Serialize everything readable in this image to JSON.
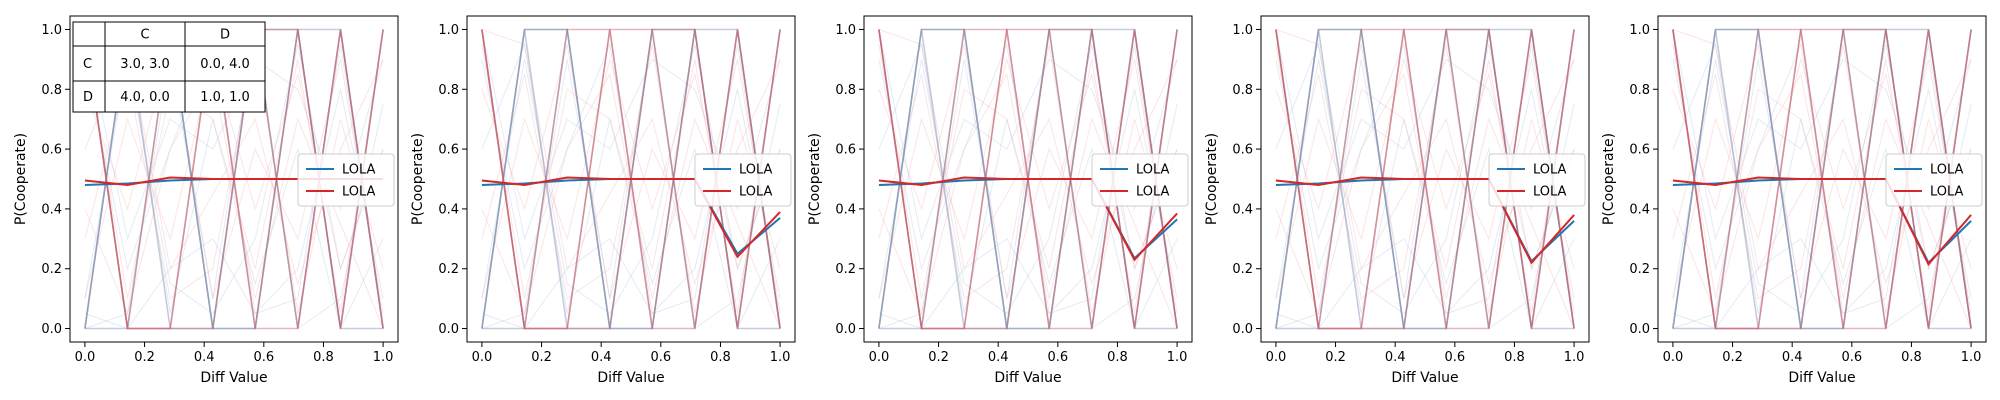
{
  "chart_data": [
    {
      "type": "line",
      "xlabel": "Diff Value",
      "ylabel": "P(Cooperate)",
      "xlim": [
        -0.05,
        1.05
      ],
      "ylim": [
        -0.045,
        1.045
      ],
      "xticks": [
        "0.0",
        "0.2",
        "0.4",
        "0.6",
        "0.8",
        "1.0"
      ],
      "yticks": [
        "0.0",
        "0.2",
        "0.4",
        "0.6",
        "0.8",
        "1.0"
      ],
      "grid": false,
      "legend": {
        "placement": "center-right",
        "entries": [
          "LOLA",
          "LOLA"
        ]
      },
      "x": [
        0,
        0.143,
        0.286,
        0.429,
        0.571,
        0.714,
        0.857,
        1.0
      ],
      "series": [
        {
          "name": "LOLA",
          "color": "#1f77b4",
          "values": [
            0.48,
            0.485,
            0.495,
            0.5,
            0.5,
            0.5,
            0.5,
            0.5
          ]
        },
        {
          "name": "LOLA",
          "color": "#d62728",
          "values": [
            0.495,
            0.48,
            0.505,
            0.5,
            0.5,
            0.5,
            0.5,
            0.5
          ]
        }
      ],
      "payoff_table": {
        "header": [
          "",
          "C",
          "D"
        ],
        "rows": [
          [
            "C",
            "3.0, 3.0",
            "0.0, 4.0"
          ],
          [
            "D",
            "4.0, 0.0",
            "1.0, 1.0"
          ]
        ]
      }
    },
    {
      "type": "line",
      "xlabel": "Diff Value",
      "ylabel": "P(Cooperate)",
      "xlim": [
        -0.05,
        1.05
      ],
      "ylim": [
        -0.045,
        1.045
      ],
      "xticks": [
        "0.0",
        "0.2",
        "0.4",
        "0.6",
        "0.8",
        "1.0"
      ],
      "yticks": [
        "0.0",
        "0.2",
        "0.4",
        "0.6",
        "0.8",
        "1.0"
      ],
      "grid": false,
      "legend": {
        "placement": "center-right",
        "entries": [
          "LOLA",
          "LOLA"
        ]
      },
      "x": [
        0,
        0.143,
        0.286,
        0.429,
        0.571,
        0.714,
        0.857,
        1.0
      ],
      "series": [
        {
          "name": "LOLA",
          "color": "#1f77b4",
          "values": [
            0.48,
            0.485,
            0.495,
            0.5,
            0.5,
            0.5,
            0.25,
            0.37
          ]
        },
        {
          "name": "LOLA",
          "color": "#d62728",
          "values": [
            0.495,
            0.48,
            0.505,
            0.5,
            0.5,
            0.5,
            0.24,
            0.39
          ]
        }
      ]
    },
    {
      "type": "line",
      "xlabel": "Diff Value",
      "ylabel": "P(Cooperate)",
      "xlim": [
        -0.05,
        1.05
      ],
      "ylim": [
        -0.045,
        1.045
      ],
      "xticks": [
        "0.0",
        "0.2",
        "0.4",
        "0.6",
        "0.8",
        "1.0"
      ],
      "yticks": [
        "0.0",
        "0.2",
        "0.4",
        "0.6",
        "0.8",
        "1.0"
      ],
      "grid": false,
      "legend": {
        "placement": "center-right",
        "entries": [
          "LOLA",
          "LOLA"
        ]
      },
      "x": [
        0,
        0.143,
        0.286,
        0.429,
        0.571,
        0.714,
        0.857,
        1.0
      ],
      "series": [
        {
          "name": "LOLA",
          "color": "#1f77b4",
          "values": [
            0.48,
            0.485,
            0.495,
            0.5,
            0.5,
            0.5,
            0.235,
            0.365
          ]
        },
        {
          "name": "LOLA",
          "color": "#d62728",
          "values": [
            0.495,
            0.48,
            0.505,
            0.5,
            0.5,
            0.5,
            0.23,
            0.385
          ]
        }
      ]
    },
    {
      "type": "line",
      "xlabel": "Diff Value",
      "ylabel": "P(Cooperate)",
      "xlim": [
        -0.05,
        1.05
      ],
      "ylim": [
        -0.045,
        1.045
      ],
      "xticks": [
        "0.0",
        "0.2",
        "0.4",
        "0.6",
        "0.8",
        "1.0"
      ],
      "yticks": [
        "0.0",
        "0.2",
        "0.4",
        "0.6",
        "0.8",
        "1.0"
      ],
      "grid": false,
      "legend": {
        "placement": "center-right",
        "entries": [
          "LOLA",
          "LOLA"
        ]
      },
      "x": [
        0,
        0.143,
        0.286,
        0.429,
        0.571,
        0.714,
        0.857,
        1.0
      ],
      "series": [
        {
          "name": "LOLA",
          "color": "#1f77b4",
          "values": [
            0.48,
            0.485,
            0.495,
            0.5,
            0.5,
            0.5,
            0.225,
            0.36
          ]
        },
        {
          "name": "LOLA",
          "color": "#d62728",
          "values": [
            0.495,
            0.48,
            0.505,
            0.5,
            0.5,
            0.5,
            0.22,
            0.38
          ]
        }
      ]
    },
    {
      "type": "line",
      "xlabel": "Diff Value",
      "ylabel": "P(Cooperate)",
      "xlim": [
        -0.05,
        1.05
      ],
      "ylim": [
        -0.045,
        1.045
      ],
      "xticks": [
        "0.0",
        "0.2",
        "0.4",
        "0.6",
        "0.8",
        "1.0"
      ],
      "yticks": [
        "0.0",
        "0.2",
        "0.4",
        "0.6",
        "0.8",
        "1.0"
      ],
      "grid": false,
      "legend": {
        "placement": "center-right",
        "entries": [
          "LOLA",
          "LOLA"
        ]
      },
      "x": [
        0,
        0.143,
        0.286,
        0.429,
        0.571,
        0.714,
        0.857,
        1.0
      ],
      "series": [
        {
          "name": "LOLA",
          "color": "#1f77b4",
          "values": [
            0.48,
            0.485,
            0.495,
            0.5,
            0.5,
            0.5,
            0.22,
            0.36
          ]
        },
        {
          "name": "LOLA",
          "color": "#d62728",
          "values": [
            0.495,
            0.48,
            0.505,
            0.5,
            0.5,
            0.5,
            0.215,
            0.38
          ]
        }
      ]
    }
  ],
  "background_traces": {
    "x": [
      0,
      0.143,
      0.286,
      0.429,
      0.571,
      0.714,
      0.857,
      1.0
    ],
    "strong_blue": [
      [
        0,
        1,
        1,
        0,
        0,
        1,
        0,
        0
      ],
      [
        0,
        1,
        0,
        0,
        1,
        0,
        1,
        0
      ],
      [
        0,
        1,
        1,
        0,
        1,
        1,
        0,
        1
      ],
      [
        0,
        0,
        1,
        0,
        0,
        1,
        1,
        0
      ]
    ],
    "strong_red": [
      [
        1,
        0,
        0,
        1,
        1,
        0,
        1,
        0
      ],
      [
        1,
        0,
        1,
        1,
        0,
        1,
        0,
        1
      ],
      [
        1,
        0,
        0,
        1,
        0,
        0,
        1,
        0
      ],
      [
        1,
        0,
        0,
        0,
        1,
        1,
        0,
        1
      ]
    ],
    "faint_blue": [
      [
        0.05,
        0.0,
        0.2,
        0.3,
        0.05,
        0.1,
        0.95,
        0.0
      ],
      [
        1.0,
        0.3,
        0.7,
        0.6,
        0.9,
        0.8,
        0.4,
        0.9
      ],
      [
        0.1,
        0.9,
        0.15,
        0.05,
        0.3,
        0.95,
        0.2,
        0.6
      ],
      [
        0.9,
        0.2,
        0.6,
        0.95,
        0.05,
        0.2,
        0.8,
        0.1
      ],
      [
        0.0,
        0.05,
        0.9,
        0.1,
        1.0,
        0.0,
        0.1,
        0.75
      ],
      [
        0.6,
        0.95,
        0.05,
        0.7,
        0.15,
        0.6,
        0.0,
        0.3
      ]
    ],
    "faint_red": [
      [
        0.95,
        0.1,
        0.8,
        0.7,
        0.2,
        0.9,
        0.05,
        1.0
      ],
      [
        0.3,
        0.85,
        0.1,
        0.2,
        0.95,
        0.05,
        0.7,
        0.2
      ],
      [
        0.8,
        0.4,
        0.95,
        0.1,
        0.6,
        0.3,
        0.9,
        0.05
      ],
      [
        0.1,
        0.7,
        0.3,
        0.9,
        0.4,
        0.85,
        0.2,
        0.6
      ],
      [
        1.0,
        0.95,
        0.2,
        0.45,
        0.7,
        0.15,
        0.6,
        0.9
      ],
      [
        0.4,
        0.05,
        0.6,
        0.85,
        0.1,
        0.7,
        0.35,
        0.0
      ]
    ]
  }
}
